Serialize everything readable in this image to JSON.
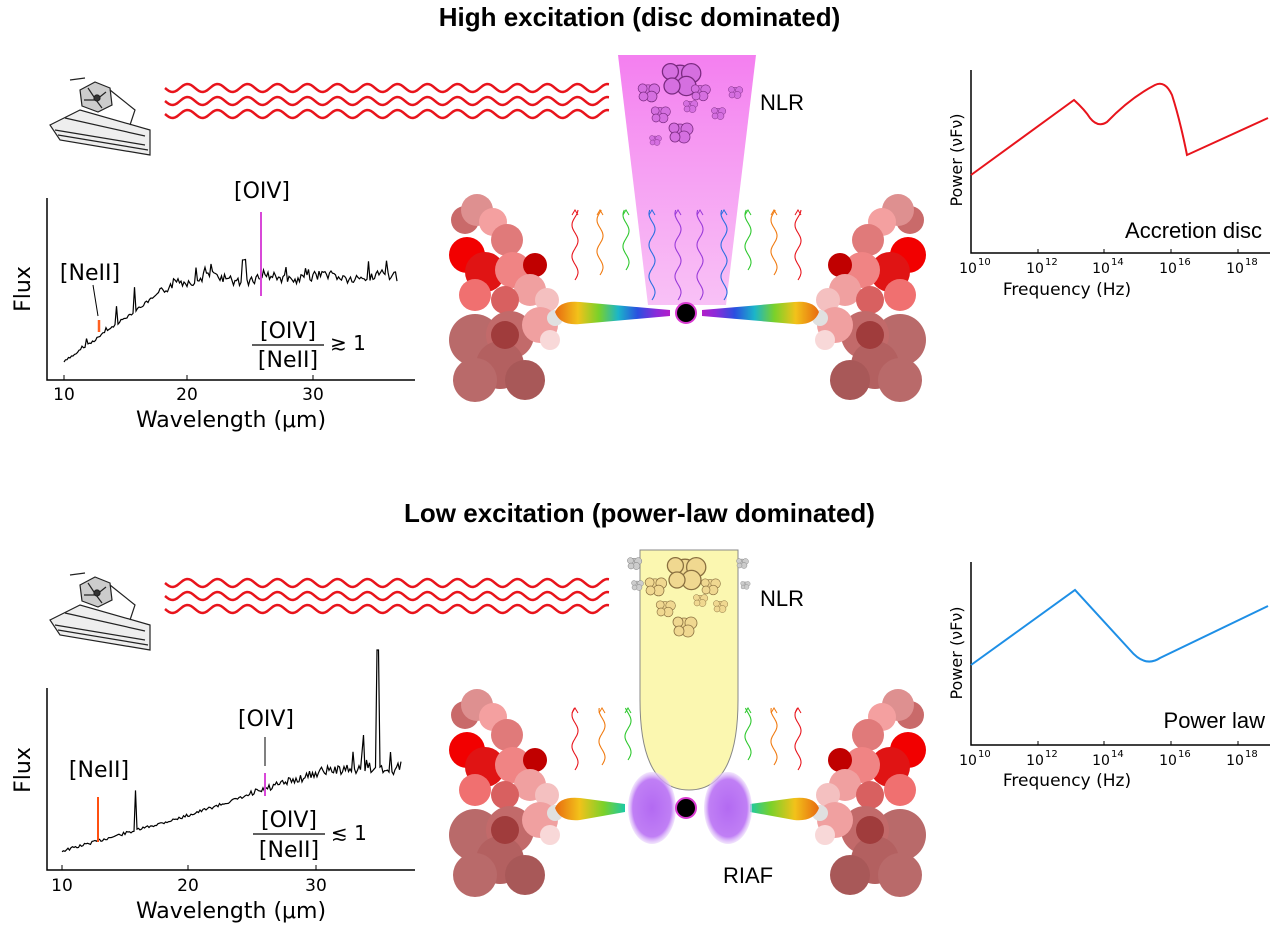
{
  "top": {
    "title": "High excitation (disc dominated)",
    "nlr_label": "NLR",
    "spectrum": {
      "ylabel": "Flux",
      "xlabel": "Wavelength (μm)",
      "xticks": [
        "10",
        "20",
        "30"
      ],
      "line1": "[NeII]",
      "line2": "[OIV]",
      "ratio_num": "[OIV]",
      "ratio_den": "[NeII]",
      "ratio_rel": "≳ 1"
    },
    "sed": {
      "ylabel": "Power (νFν)",
      "xlabel": "Frequency (Hz)",
      "xticks": [
        "10",
        "10",
        "10",
        "10",
        "10"
      ],
      "xtick_exps": [
        "10",
        "12",
        "14",
        "16",
        "18"
      ],
      "annotation": "Accretion disc",
      "color": "#e8141c"
    }
  },
  "bottom": {
    "title": "Low excitation (power-law dominated)",
    "nlr_label": "NLR",
    "riaf_label": "RIAF",
    "spectrum": {
      "ylabel": "Flux",
      "xlabel": "Wavelength (μm)",
      "xticks": [
        "10",
        "20",
        "30"
      ],
      "line1": "[NeII]",
      "line2": "[OIV]",
      "ratio_num": "[OIV]",
      "ratio_den": "[NeII]",
      "ratio_rel": "≲ 1"
    },
    "sed": {
      "ylabel": "Power (νFν)",
      "xlabel": "Frequency (Hz)",
      "xticks": [
        "10",
        "10",
        "10",
        "10",
        "10"
      ],
      "xtick_exps": [
        "10",
        "12",
        "14",
        "16",
        "18"
      ],
      "annotation": "Power law",
      "color": "#1e8fe6"
    }
  },
  "colors": {
    "wave_red": "#e8141c",
    "nlr_magenta": "#f59cf0",
    "nlr_yellow": "#fbf7b0",
    "riaf_purple": "#b36af2"
  },
  "icons": [
    "telescope-icon",
    "radiation-wave-icon",
    "torus-cloud-icon",
    "black-hole-icon"
  ]
}
